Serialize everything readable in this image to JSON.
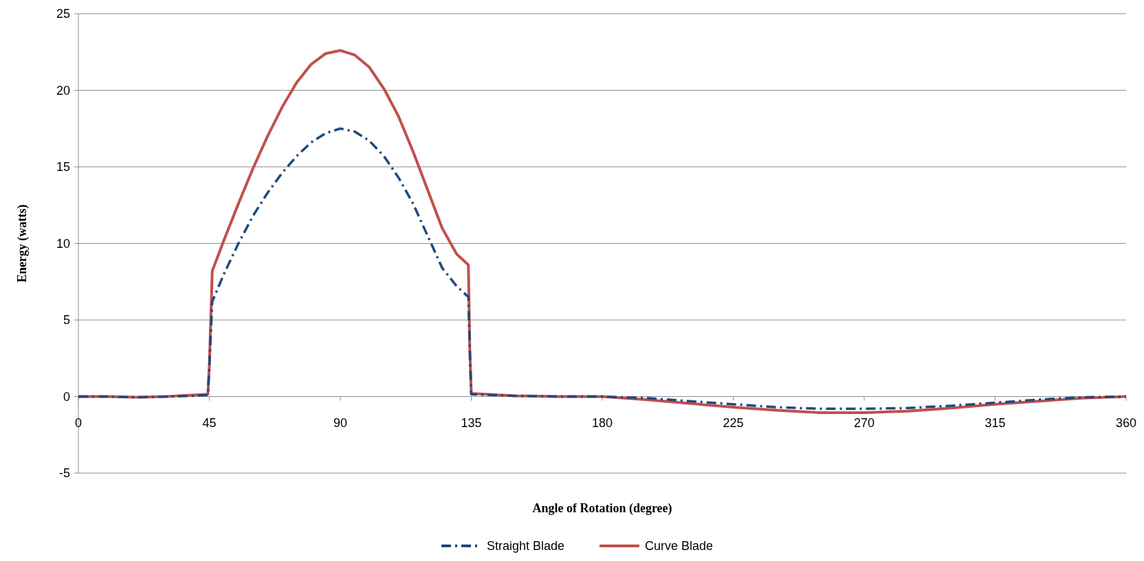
{
  "chart_data": {
    "type": "line",
    "xlabel": "Angle of Rotation (degree)",
    "ylabel": "Energy (watts)",
    "xlim": [
      0,
      360
    ],
    "xticks": [
      0,
      45,
      90,
      135,
      180,
      225,
      270,
      315,
      360
    ],
    "ylim": [
      -5,
      25
    ],
    "yticks": [
      -5,
      0,
      5,
      10,
      15,
      20,
      25
    ],
    "grid": "y",
    "legend": "bottom",
    "series": [
      {
        "name": "Straight Blade",
        "color": "#1f497d",
        "line_style": "dashdot",
        "x": [
          0,
          10,
          20,
          30,
          40,
          44.5,
          45,
          46,
          50,
          55,
          60,
          65,
          70,
          75,
          80,
          85,
          90,
          95,
          100,
          105,
          110,
          115,
          120,
          125,
          130,
          134,
          134.5,
          135,
          150,
          165,
          180,
          195,
          210,
          225,
          240,
          255,
          270,
          285,
          300,
          315,
          330,
          345,
          360
        ],
        "values": [
          0,
          0,
          -0.05,
          0,
          0.05,
          0.1,
          2,
          6.2,
          8.0,
          10.0,
          11.8,
          13.3,
          14.6,
          15.7,
          16.6,
          17.2,
          17.5,
          17.3,
          16.7,
          15.7,
          14.3,
          12.6,
          10.5,
          8.4,
          7.2,
          6.5,
          3,
          0.15,
          0.05,
          0,
          0,
          -0.1,
          -0.3,
          -0.5,
          -0.7,
          -0.8,
          -0.8,
          -0.75,
          -0.6,
          -0.4,
          -0.2,
          -0.05,
          0
        ]
      },
      {
        "name": "Curve Blade",
        "color": "#c0504d",
        "line_style": "solid",
        "x": [
          0,
          10,
          20,
          30,
          40,
          44.5,
          45,
          46,
          50,
          55,
          60,
          65,
          70,
          75,
          80,
          85,
          90,
          95,
          100,
          105,
          110,
          115,
          120,
          125,
          130,
          134,
          134.5,
          135,
          150,
          165,
          180,
          195,
          210,
          225,
          240,
          255,
          265,
          270,
          285,
          300,
          315,
          330,
          345,
          360
        ],
        "values": [
          0,
          0,
          -0.05,
          0,
          0.1,
          0.15,
          2,
          8.2,
          10.2,
          12.6,
          14.9,
          17.0,
          18.9,
          20.5,
          21.7,
          22.4,
          22.6,
          22.3,
          21.5,
          20.1,
          18.3,
          16.0,
          13.5,
          11.0,
          9.3,
          8.6,
          3,
          0.2,
          0.05,
          0,
          0,
          -0.2,
          -0.45,
          -0.7,
          -0.9,
          -1.05,
          -1.05,
          -1.05,
          -0.95,
          -0.75,
          -0.5,
          -0.3,
          -0.1,
          0
        ]
      }
    ]
  }
}
